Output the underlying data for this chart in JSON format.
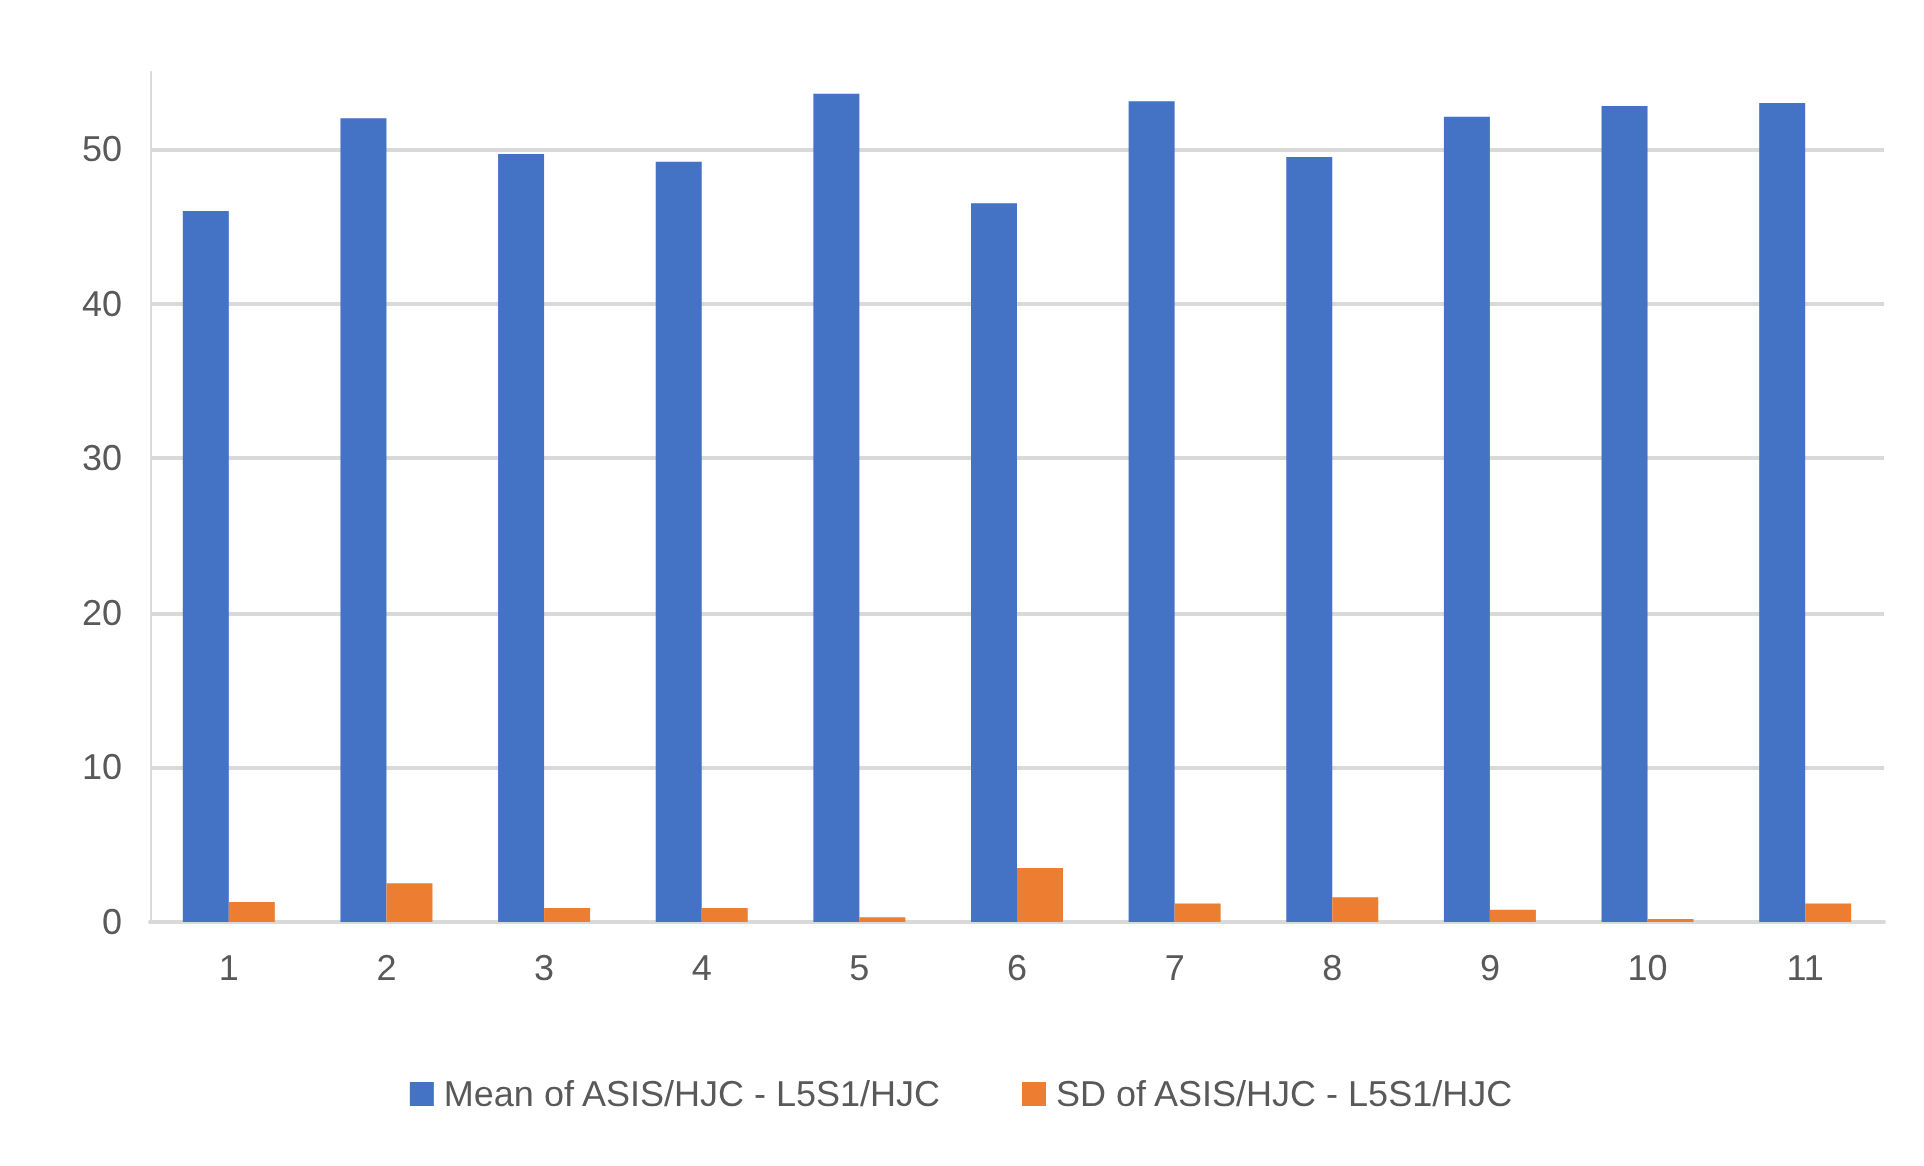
{
  "chart_data": {
    "type": "bar",
    "categories": [
      "1",
      "2",
      "3",
      "4",
      "5",
      "6",
      "7",
      "8",
      "9",
      "10",
      "11"
    ],
    "series": [
      {
        "name": "Mean of ASIS/HJC - L5S1/HJC",
        "color": "#4472c4",
        "values": [
          46.0,
          52.0,
          49.7,
          49.2,
          53.6,
          46.5,
          53.1,
          49.5,
          52.1,
          52.8,
          53.0
        ]
      },
      {
        "name": "SD of ASIS/HJC - L5S1/HJC",
        "color": "#ed7d31",
        "values": [
          1.3,
          2.5,
          0.9,
          0.9,
          0.3,
          3.5,
          1.2,
          1.6,
          0.8,
          0.2,
          1.2
        ]
      }
    ],
    "ylim": [
      0,
      55
    ],
    "yticks": [
      0,
      10,
      20,
      30,
      40,
      50
    ],
    "grid": "y",
    "legend": "bottom"
  }
}
